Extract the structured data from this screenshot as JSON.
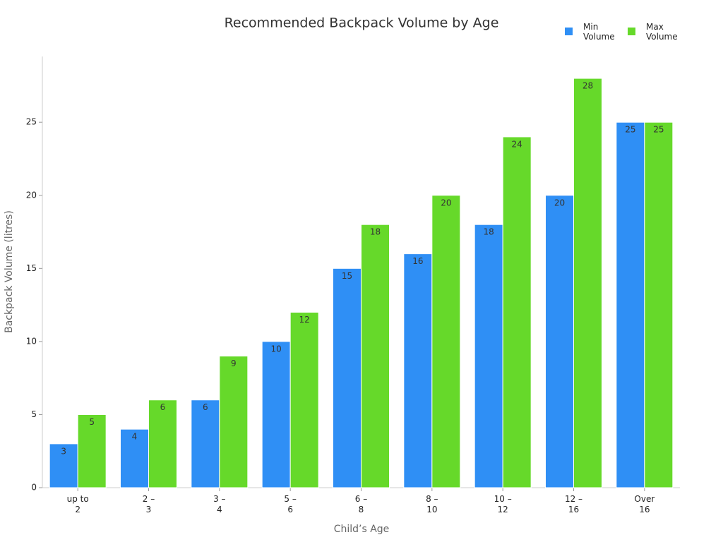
{
  "chart_data": {
    "type": "bar",
    "title": "Recommended Backpack Volume by Age",
    "x_label": "Child’s Age",
    "y_label": "Backpack Volume (litres)",
    "categories": [
      "up to\n2",
      "2 –\n3",
      "3 –\n4",
      "5 –\n6",
      "6 –\n8",
      "8 –\n10",
      "10 –\n12",
      "12 –\n16",
      "Over\n16"
    ],
    "series": [
      {
        "name": "Min\nVolume",
        "color": "#2f8ff5",
        "values": [
          3,
          4,
          6,
          10,
          15,
          16,
          18,
          20,
          25
        ]
      },
      {
        "name": "Max\nVolume",
        "color": "#66d92a",
        "values": [
          5,
          6,
          9,
          12,
          18,
          20,
          24,
          28,
          25
        ]
      }
    ],
    "ylim": [
      0,
      29.5
    ],
    "yticks": [
      0,
      5,
      10,
      15,
      20,
      25
    ],
    "grid": false,
    "legend": "top-right"
  }
}
